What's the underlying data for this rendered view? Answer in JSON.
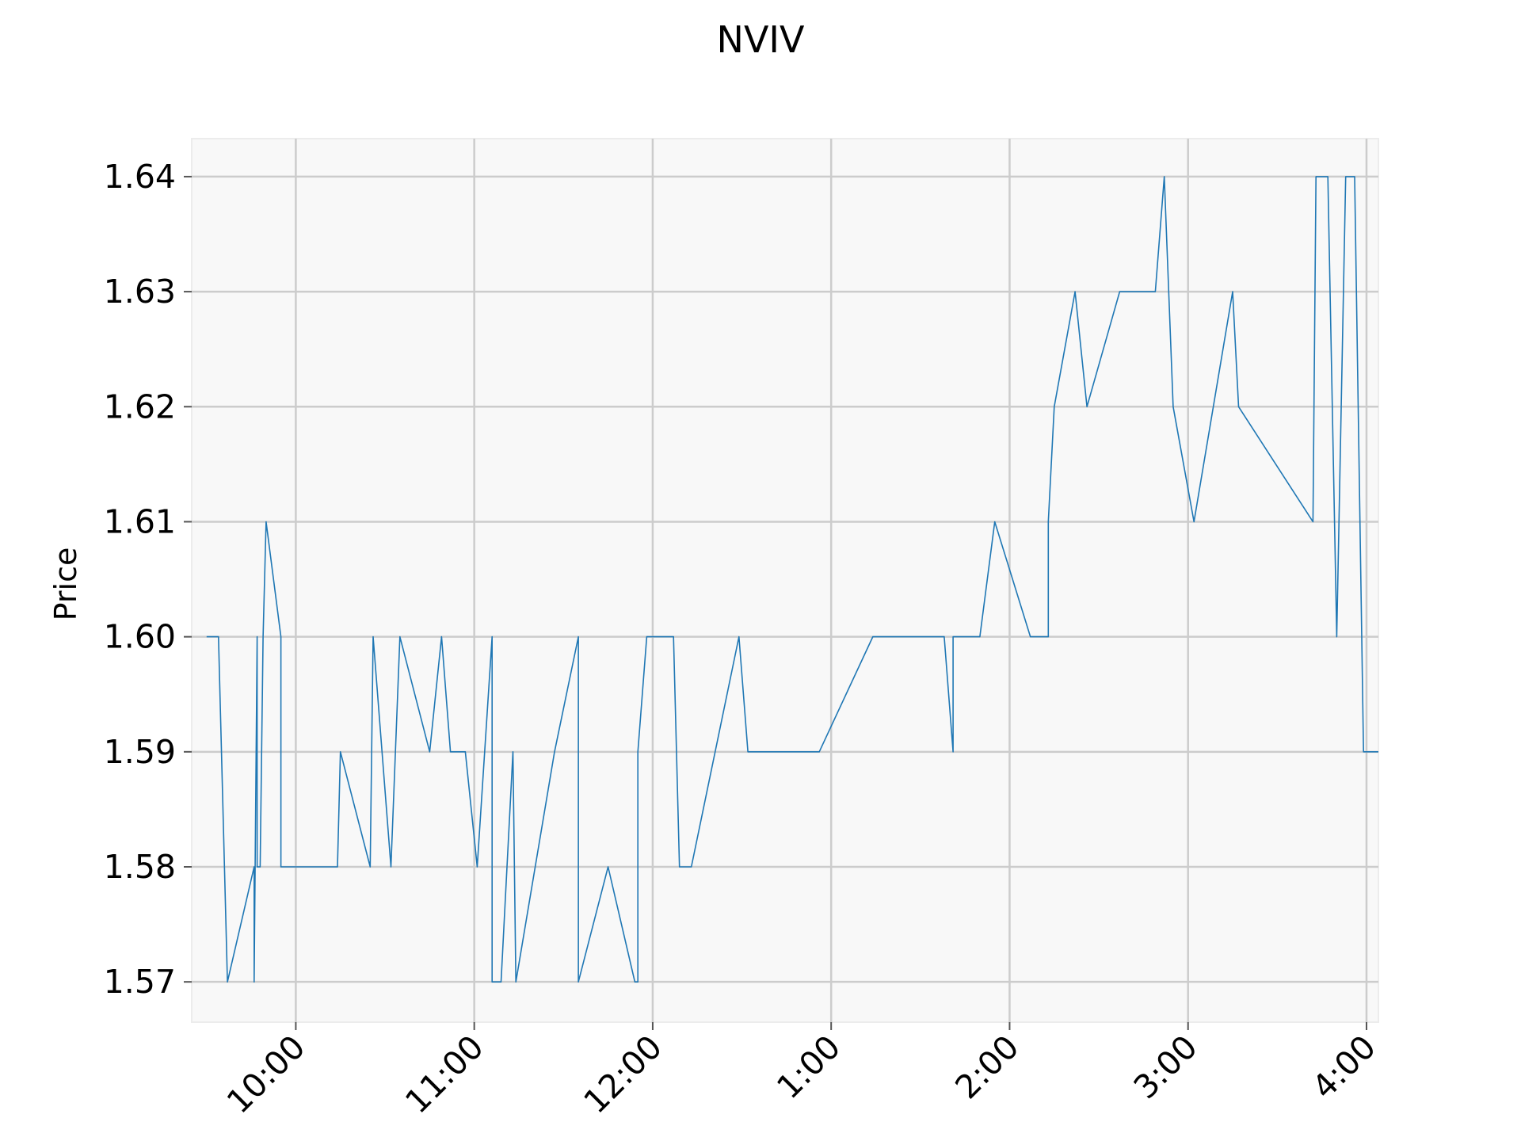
{
  "chart_data": {
    "type": "line",
    "title": "NVIV",
    "xlabel": "",
    "ylabel": "Price",
    "grid": true,
    "x_ticks": [
      "10:00",
      "11:00",
      "12:00",
      "1:00",
      "2:00",
      "3:00",
      "4:00"
    ],
    "x_tick_times": [
      "10:00",
      "11:00",
      "12:00",
      "13:00",
      "14:00",
      "15:00",
      "16:00"
    ],
    "x_range": [
      "09:25",
      "16:04"
    ],
    "y_ticks": [
      "1.57",
      "1.58",
      "1.59",
      "1.60",
      "1.61",
      "1.62",
      "1.63",
      "1.64"
    ],
    "ylim": [
      1.5665,
      1.6433
    ],
    "colors": {
      "line": "#1f77b4",
      "plot_background": "#f8f8f8",
      "grid": "#cccccc"
    },
    "series": [
      {
        "points": [
          [
            "09:30",
            1.6
          ],
          [
            "09:34",
            1.6
          ],
          [
            "09:37",
            1.57
          ],
          [
            "09:46",
            1.58
          ],
          [
            "09:46",
            1.57
          ],
          [
            "09:47",
            1.6
          ],
          [
            "09:47",
            1.58
          ],
          [
            "09:48",
            1.58
          ],
          [
            "09:49",
            1.6
          ],
          [
            "09:50",
            1.61
          ],
          [
            "09:55",
            1.6
          ],
          [
            "09:55",
            1.58
          ],
          [
            "10:14",
            1.58
          ],
          [
            "10:15",
            1.59
          ],
          [
            "10:25",
            1.58
          ],
          [
            "10:26",
            1.6
          ],
          [
            "10:32",
            1.58
          ],
          [
            "10:35",
            1.6
          ],
          [
            "10:45",
            1.59
          ],
          [
            "10:49",
            1.6
          ],
          [
            "10:52",
            1.59
          ],
          [
            "10:57",
            1.59
          ],
          [
            "11:01",
            1.58
          ],
          [
            "11:06",
            1.6
          ],
          [
            "11:06",
            1.57
          ],
          [
            "11:09",
            1.57
          ],
          [
            "11:13",
            1.59
          ],
          [
            "11:14",
            1.57
          ],
          [
            "11:27",
            1.59
          ],
          [
            "11:35",
            1.6
          ],
          [
            "11:35",
            1.57
          ],
          [
            "11:45",
            1.58
          ],
          [
            "11:54",
            1.57
          ],
          [
            "11:55",
            1.57
          ],
          [
            "11:55",
            1.59
          ],
          [
            "11:58",
            1.6
          ],
          [
            "12:07",
            1.6
          ],
          [
            "12:09",
            1.58
          ],
          [
            "12:13",
            1.58
          ],
          [
            "12:29",
            1.6
          ],
          [
            "12:32",
            1.59
          ],
          [
            "12:56",
            1.59
          ],
          [
            "13:14",
            1.6
          ],
          [
            "13:38",
            1.6
          ],
          [
            "13:41",
            1.59
          ],
          [
            "13:41",
            1.6
          ],
          [
            "13:50",
            1.6
          ],
          [
            "13:55",
            1.61
          ],
          [
            "14:07",
            1.6
          ],
          [
            "14:13",
            1.6
          ],
          [
            "14:13",
            1.61
          ],
          [
            "14:15",
            1.62
          ],
          [
            "14:22",
            1.63
          ],
          [
            "14:26",
            1.62
          ],
          [
            "14:37",
            1.63
          ],
          [
            "14:49",
            1.63
          ],
          [
            "14:52",
            1.64
          ],
          [
            "14:55",
            1.62
          ],
          [
            "15:02",
            1.61
          ],
          [
            "15:15",
            1.63
          ],
          [
            "15:17",
            1.62
          ],
          [
            "15:42",
            1.61
          ],
          [
            "15:43",
            1.64
          ],
          [
            "15:47",
            1.64
          ],
          [
            "15:50",
            1.6
          ],
          [
            "15:53",
            1.64
          ],
          [
            "15:56",
            1.64
          ],
          [
            "15:59",
            1.59
          ],
          [
            "16:04",
            1.59
          ]
        ]
      }
    ]
  }
}
